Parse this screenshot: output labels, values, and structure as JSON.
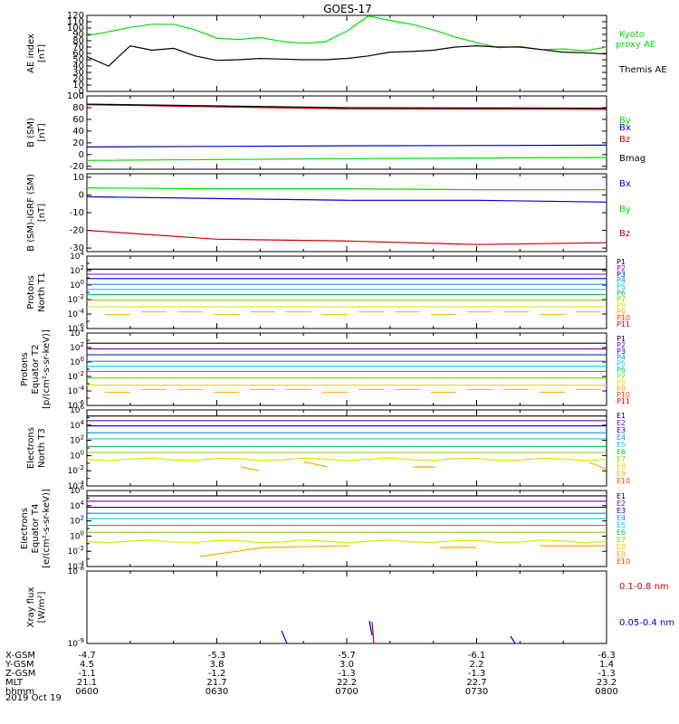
{
  "title": "GOES-17",
  "date_label": "2019 Oct 19",
  "colors": {
    "black": "#000000",
    "green": "#00dd00",
    "blue": "#0000cc",
    "red": "#cc0000",
    "P1": "#000000",
    "P2": "#7700aa",
    "P3": "#0000cc",
    "P4": "#0099ee",
    "P5": "#00cccc",
    "P6": "#00bb66",
    "P7": "#88cc00",
    "P8": "#dddd00",
    "P9": "#ffaa00",
    "P10": "#ee4400",
    "P11": "#cc0000"
  },
  "chart_data": [
    {
      "id": "ae",
      "type": "line",
      "ylabel": [
        "AE index",
        "[nT]"
      ],
      "ylim": [
        0,
        120
      ],
      "yticks": [
        "0",
        "10",
        "20",
        "30",
        "40",
        "50",
        "60",
        "70",
        "80",
        "90",
        "100",
        "110",
        "120"
      ],
      "x": [
        "06:00",
        "06:05",
        "06:10",
        "06:15",
        "06:20",
        "06:25",
        "06:30",
        "06:35",
        "06:40",
        "06:45",
        "06:50",
        "06:55",
        "07:00",
        "07:05",
        "07:10",
        "07:15",
        "07:20",
        "07:25",
        "07:30",
        "07:35",
        "07:40",
        "07:45",
        "07:50",
        "07:55",
        "08:00"
      ],
      "series": [
        {
          "name": "Kyoto proxy AE",
          "color": "green",
          "values": [
            88,
            94,
            101,
            106,
            106,
            97,
            84,
            82,
            85,
            79,
            76,
            78,
            95,
            119,
            112,
            106,
            97,
            86,
            77,
            69,
            71,
            66,
            67,
            64,
            70
          ]
        },
        {
          "name": "Themis AE",
          "color": "black",
          "values": [
            55,
            40,
            72,
            65,
            68,
            56,
            49,
            50,
            52,
            51,
            50,
            50,
            52,
            56,
            62,
            63,
            65,
            70,
            72,
            70,
            70,
            66,
            62,
            61,
            59
          ]
        }
      ]
    },
    {
      "id": "bsm",
      "type": "line",
      "ylabel": [
        "B (SM)",
        "[nT]"
      ],
      "ylim": [
        -25,
        100
      ],
      "yticks": [
        "-20",
        "0",
        "20",
        "40",
        "60",
        "80",
        "100"
      ],
      "x": [
        "06:00",
        "07:00",
        "08:00"
      ],
      "series": [
        {
          "name": "Bx",
          "color": "blue",
          "values": [
            13,
            15,
            16
          ]
        },
        {
          "name": "By",
          "color": "green",
          "values": [
            -10,
            -7,
            -5
          ]
        },
        {
          "name": "Bz",
          "color": "red",
          "values": [
            85,
            78,
            77
          ]
        },
        {
          "name": "Bmag",
          "color": "black",
          "values": [
            86,
            80,
            79
          ]
        }
      ]
    },
    {
      "id": "bigrf",
      "type": "line",
      "ylabel": [
        "B (SM)-IGRF (SM)",
        "[nT]"
      ],
      "ylim": [
        -32,
        12
      ],
      "yticks": [
        "-30",
        "-20",
        "-10",
        "0",
        "10"
      ],
      "x": [
        "06:00",
        "06:30",
        "07:00",
        "07:30",
        "08:00"
      ],
      "series": [
        {
          "name": "Bx",
          "color": "blue",
          "values": [
            -1,
            -2,
            -3,
            -3,
            -4
          ]
        },
        {
          "name": "By",
          "color": "green",
          "values": [
            4,
            3.5,
            3.5,
            3,
            3
          ]
        },
        {
          "name": "Bz",
          "color": "red",
          "values": [
            -20,
            -25,
            -26,
            -28,
            -27
          ]
        }
      ]
    },
    {
      "id": "pn",
      "type": "line",
      "ylabel": [
        "Protons",
        "North T1"
      ],
      "ylim_log": [
        -6,
        4
      ],
      "yticks": [
        "10^-6",
        "10^-4",
        "10^-2",
        "10^0",
        "10^2",
        "10^4"
      ],
      "series_names": [
        "P1",
        "P2",
        "P3",
        "P4",
        "P5",
        "P6",
        "P7",
        "P8",
        "P9",
        "P10",
        "P11"
      ],
      "levels_log10": [
        2.2,
        1.5,
        0.9,
        0.1,
        -0.6,
        -1.3,
        -2.1,
        -3.0,
        -3.7,
        null,
        null
      ]
    },
    {
      "id": "pe",
      "type": "line",
      "ylabel": [
        "Protons",
        "Equator T2",
        "[p/(cm²-s-sr-keV)]"
      ],
      "ylim_log": [
        -6,
        4
      ],
      "yticks": [
        "10^-6",
        "10^-4",
        "10^-2",
        "10^0",
        "10^2",
        "10^4"
      ],
      "series_names": [
        "P1",
        "P2",
        "P3",
        "P4",
        "P5",
        "P6",
        "P7",
        "P8",
        "P9",
        "P10",
        "P11"
      ],
      "levels_log10": [
        2.6,
        1.8,
        1.0,
        0.1,
        -0.6,
        -1.3,
        -2.2,
        -3.2,
        -3.8,
        null,
        null
      ]
    },
    {
      "id": "en",
      "type": "line",
      "ylabel": [
        "Electrons",
        "North T3"
      ],
      "ylim_log": [
        -4,
        6
      ],
      "yticks": [
        "10^-4",
        "10^-2",
        "10^0",
        "10^2",
        "10^4",
        "10^6"
      ],
      "series_names": [
        "E1",
        "E2",
        "E3",
        "E4",
        "E5",
        "E6",
        "E7",
        "E8",
        "E9",
        "E10"
      ],
      "levels_log10": [
        5.2,
        4.6,
        3.9,
        3.0,
        2.2,
        1.2,
        0.4,
        -0.5,
        -1.5,
        null
      ]
    },
    {
      "id": "ee",
      "type": "line",
      "ylabel": [
        "Electrons",
        "Equator T4",
        "[e/(cm²-s-sr-keV)]"
      ],
      "ylim_log": [
        -4,
        6
      ],
      "yticks": [
        "10^-4",
        "10^-2",
        "10^0",
        "10^2",
        "10^4",
        "10^6"
      ],
      "series_names": [
        "E1",
        "E2",
        "E3",
        "E4",
        "E5",
        "E6",
        "E7",
        "E8",
        "E9",
        "E10"
      ],
      "levels_log10": [
        5.3,
        4.6,
        3.8,
        3.0,
        2.3,
        1.4,
        0.5,
        -0.7,
        -1.5,
        null
      ]
    },
    {
      "id": "xray",
      "type": "line",
      "ylabel": [
        "Xray flux",
        "[W/m²]"
      ],
      "ylim_log": [
        -9,
        -8
      ],
      "yticks": [
        "10^-9",
        "10^-8"
      ],
      "series": [
        {
          "name": "0.1-0.8 nm",
          "color": "red"
        },
        {
          "name": "0.05-0.4 nm",
          "color": "blue"
        }
      ]
    }
  ],
  "ephemeris": {
    "row_labels": [
      "X-GSM",
      "Y-GSM",
      "Z-GSM",
      "MLT",
      "hhmm"
    ],
    "columns": [
      [
        "-4.7",
        "4.5",
        "-1.1",
        "21.1",
        "0600"
      ],
      [
        "-5.3",
        "3.8",
        "-1.2",
        "21.7",
        "0630"
      ],
      [
        "-5.7",
        "3.0",
        "-1.3",
        "22.2",
        "0700"
      ],
      [
        "-6.1",
        "2.2",
        "-1.3",
        "22.7",
        "0730"
      ],
      [
        "-6.3",
        "1.4",
        "-1.3",
        "23.2",
        "0800"
      ]
    ]
  }
}
